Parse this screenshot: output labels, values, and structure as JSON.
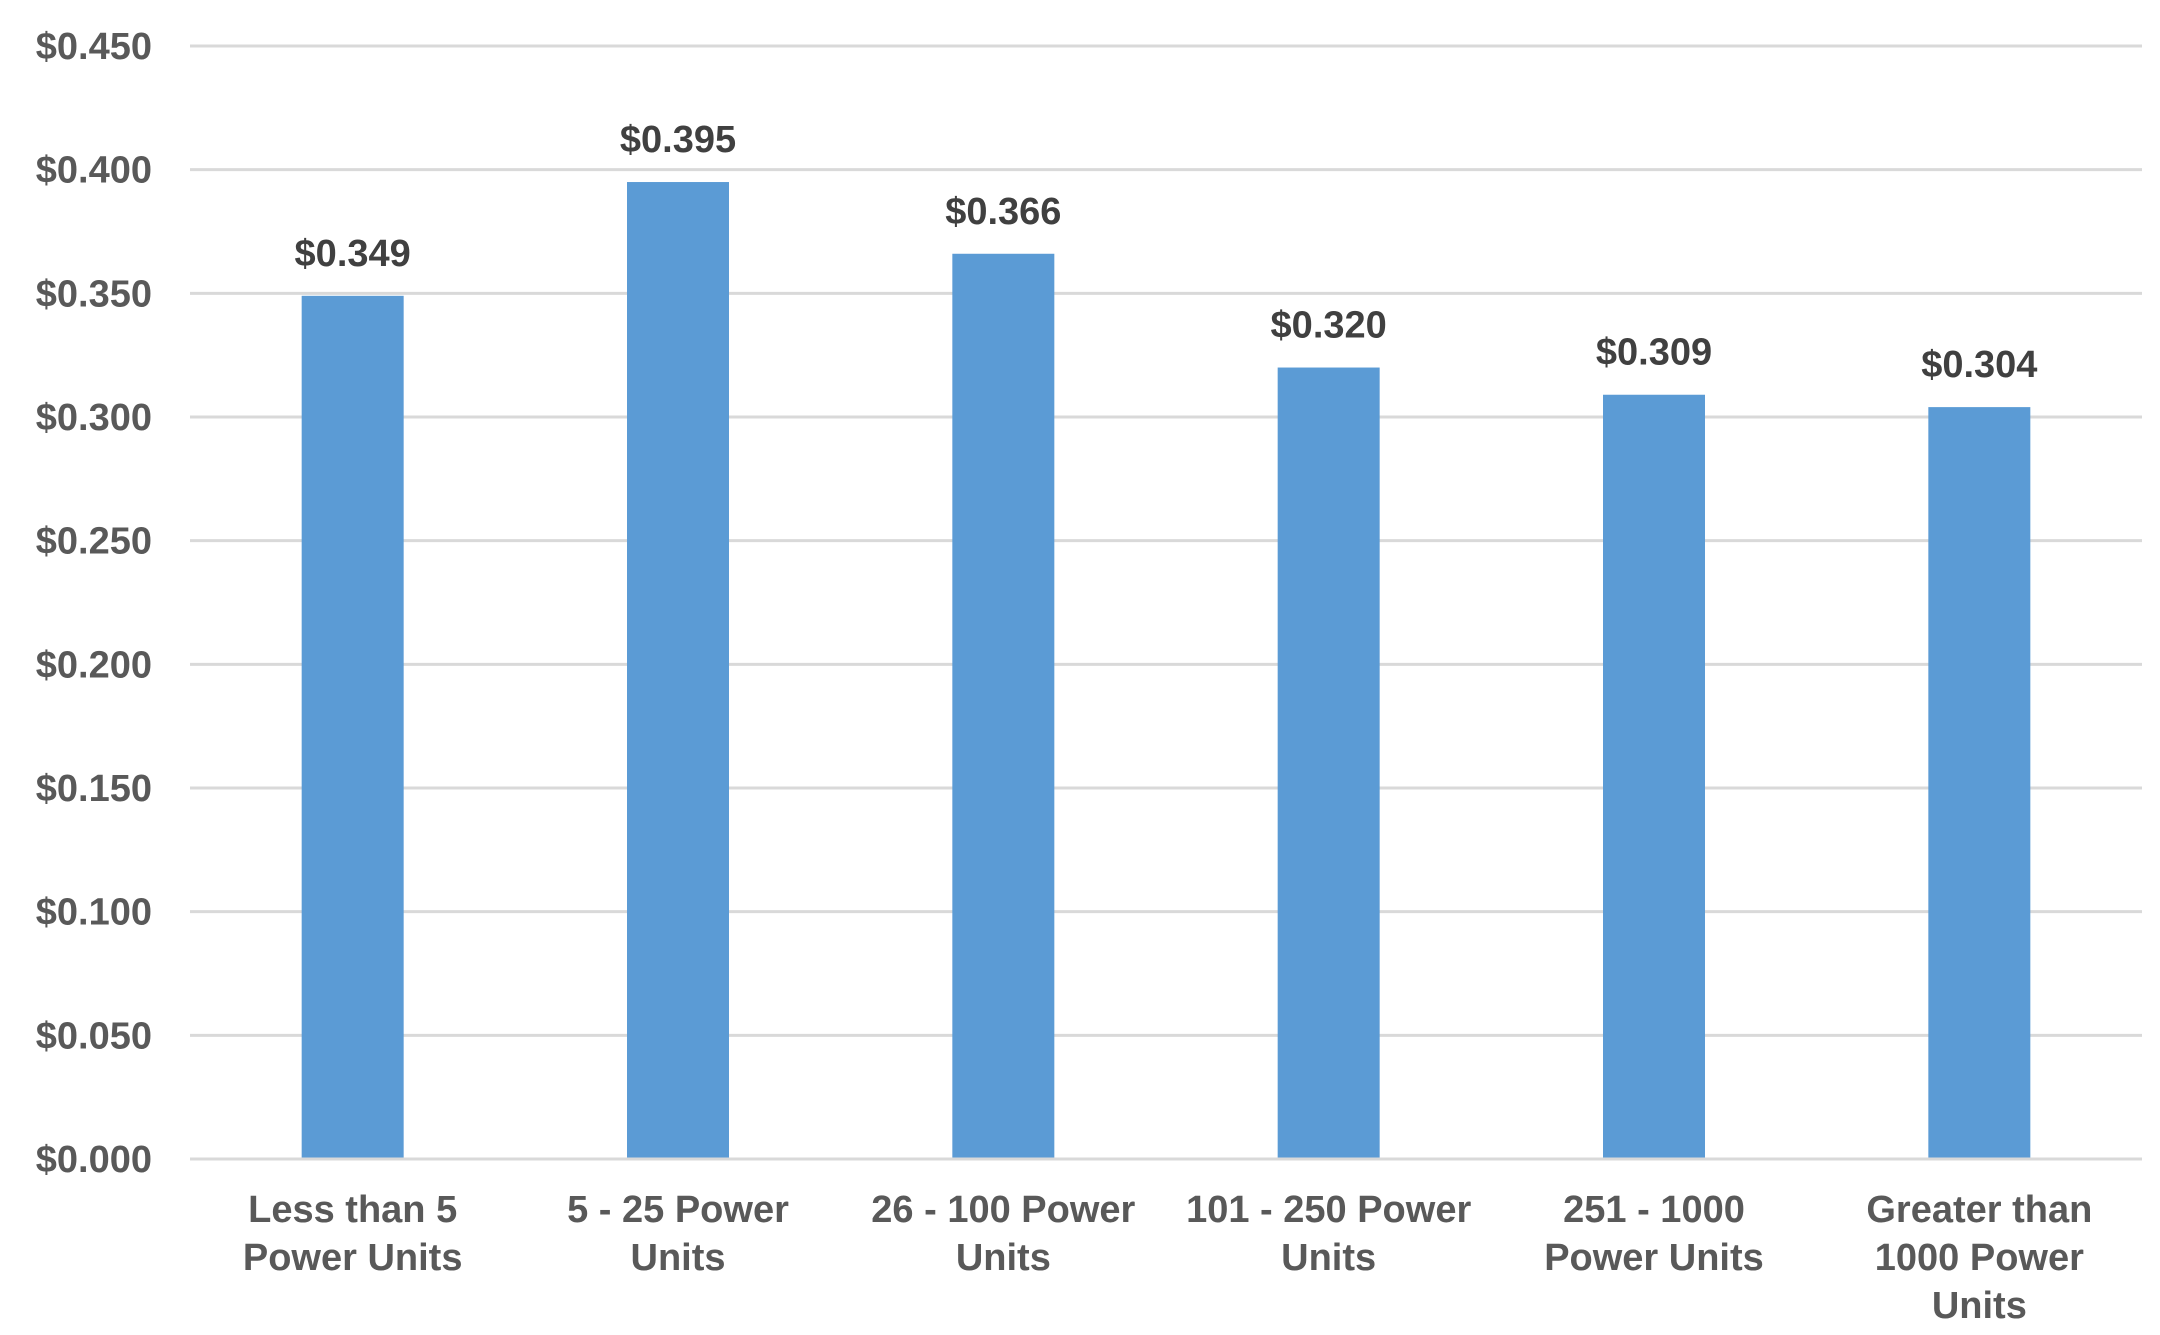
{
  "chart_data": {
    "type": "bar",
    "categories": [
      [
        "Less than 5",
        "Power Units"
      ],
      [
        "5 - 25 Power",
        "Units"
      ],
      [
        "26 - 100 Power",
        "Units"
      ],
      [
        "101 - 250 Power",
        "Units"
      ],
      [
        "251 - 1000",
        "Power Units"
      ],
      [
        "Greater than",
        "1000 Power",
        "Units"
      ]
    ],
    "values": [
      0.349,
      0.395,
      0.366,
      0.32,
      0.309,
      0.304
    ],
    "data_labels": [
      "$0.349",
      "$0.395",
      "$0.366",
      "$0.320",
      "$0.309",
      "$0.304"
    ],
    "yticks": [
      0,
      0.05,
      0.1,
      0.15,
      0.2,
      0.25,
      0.3,
      0.35,
      0.4,
      0.45
    ],
    "ytick_labels": [
      "$0.000",
      "$0.050",
      "$0.100",
      "$0.150",
      "$0.200",
      "$0.250",
      "$0.300",
      "$0.350",
      "$0.400",
      "$0.450"
    ],
    "ylim": [
      0,
      0.45
    ],
    "grid": true,
    "legend": "none",
    "bar_color": "#5b9bd5",
    "title": "",
    "xlabel": "",
    "ylabel": ""
  }
}
